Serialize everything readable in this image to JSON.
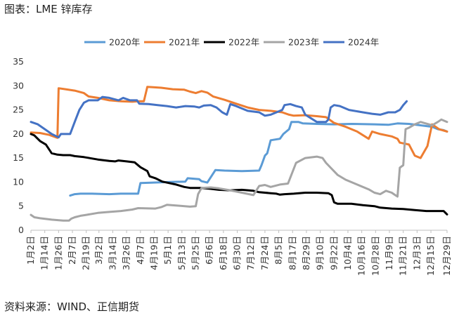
{
  "header": {
    "title": "图表：LME 锌库存"
  },
  "footer": {
    "source": "资料来源：WIND、正信期货"
  },
  "chart_data": {
    "type": "line",
    "title": "图表：LME 锌库存",
    "xlabel": "",
    "ylabel": "",
    "ylim": [
      0,
      35
    ],
    "yticks": [
      0,
      5,
      10,
      15,
      20,
      25,
      30,
      35
    ],
    "grid": false,
    "legend": "top",
    "x_unit": "day_of_year",
    "categories": [
      "1月2日",
      "1月14日",
      "1月26日",
      "2月7日",
      "2月19日",
      "3月2日",
      "3月14日",
      "3月26日",
      "4月7日",
      "4月19日",
      "5月1日",
      "5月13日",
      "5月25日",
      "6月6日",
      "6月18日",
      "6月30日",
      "7月12日",
      "7月24日",
      "8月5日",
      "8月17日",
      "8月29日",
      "9月10日",
      "9月22日",
      "10月4日",
      "10月16日",
      "10月28日",
      "11月9日",
      "11月21日",
      "12月3日",
      "12月15日",
      "12月29日"
    ],
    "category_x": [
      2,
      14,
      26,
      38,
      50,
      61,
      73,
      85,
      97,
      109,
      121,
      133,
      145,
      157,
      169,
      181,
      193,
      205,
      217,
      229,
      241,
      253,
      265,
      277,
      289,
      301,
      313,
      325,
      337,
      349,
      363
    ],
    "series": [
      {
        "name": "2020年",
        "color": "#5b9bd5",
        "points": [
          [
            36,
            7.2
          ],
          [
            40,
            7.5
          ],
          [
            45,
            7.6
          ],
          [
            55,
            7.6
          ],
          [
            70,
            7.5
          ],
          [
            80,
            7.6
          ],
          [
            86,
            7.6
          ],
          [
            95,
            7.6
          ],
          [
            97,
            9.8
          ],
          [
            108,
            9.9
          ],
          [
            120,
            10.0
          ],
          [
            136,
            10.1
          ],
          [
            138,
            10.8
          ],
          [
            148,
            10.6
          ],
          [
            150,
            10.2
          ],
          [
            155,
            9.9
          ],
          [
            162,
            12.5
          ],
          [
            170,
            12.4
          ],
          [
            185,
            12.3
          ],
          [
            200,
            12.4
          ],
          [
            202,
            13.5
          ],
          [
            205,
            15.5
          ],
          [
            207,
            16.0
          ],
          [
            210,
            18.7
          ],
          [
            218,
            19.0
          ],
          [
            221,
            20.0
          ],
          [
            226,
            21.0
          ],
          [
            228,
            22.5
          ],
          [
            234,
            22.5
          ],
          [
            238,
            22.2
          ],
          [
            250,
            22.1
          ],
          [
            265,
            22.0
          ],
          [
            280,
            22.1
          ],
          [
            300,
            22.0
          ],
          [
            312,
            21.9
          ],
          [
            320,
            22.2
          ],
          [
            330,
            22.1
          ],
          [
            340,
            21.8
          ],
          [
            350,
            21.5
          ],
          [
            355,
            21.0
          ],
          [
            360,
            20.8
          ],
          [
            363,
            20.5
          ]
        ]
      },
      {
        "name": "2021年",
        "color": "#ed7d31",
        "points": [
          [
            2,
            20.3
          ],
          [
            10,
            20.2
          ],
          [
            18,
            19.8
          ],
          [
            25,
            19.2
          ],
          [
            26,
            29.5
          ],
          [
            32,
            29.3
          ],
          [
            40,
            29.0
          ],
          [
            48,
            28.5
          ],
          [
            52,
            27.8
          ],
          [
            60,
            27.5
          ],
          [
            70,
            27.0
          ],
          [
            80,
            26.8
          ],
          [
            90,
            26.7
          ],
          [
            95,
            26.8
          ],
          [
            100,
            26.8
          ],
          [
            103,
            29.8
          ],
          [
            108,
            29.7
          ],
          [
            115,
            29.6
          ],
          [
            125,
            29.3
          ],
          [
            135,
            29.2
          ],
          [
            140,
            28.8
          ],
          [
            145,
            28.5
          ],
          [
            150,
            28.9
          ],
          [
            155,
            28.6
          ],
          [
            160,
            27.8
          ],
          [
            170,
            27.1
          ],
          [
            180,
            26.3
          ],
          [
            190,
            25.5
          ],
          [
            200,
            25.0
          ],
          [
            210,
            24.8
          ],
          [
            220,
            24.5
          ],
          [
            226,
            24.0
          ],
          [
            230,
            23.8
          ],
          [
            240,
            23.9
          ],
          [
            250,
            23.7
          ],
          [
            258,
            23.5
          ],
          [
            265,
            22.3
          ],
          [
            275,
            21.5
          ],
          [
            285,
            20.5
          ],
          [
            295,
            19.0
          ],
          [
            298,
            20.5
          ],
          [
            305,
            20.0
          ],
          [
            315,
            19.5
          ],
          [
            320,
            19.0
          ],
          [
            322,
            18.2
          ],
          [
            330,
            17.8
          ],
          [
            335,
            15.5
          ],
          [
            340,
            15.0
          ],
          [
            346,
            17.5
          ],
          [
            350,
            22.0
          ],
          [
            356,
            21.0
          ],
          [
            363,
            20.5
          ]
        ]
      },
      {
        "name": "2022年",
        "color": "#000000",
        "points": [
          [
            2,
            20.0
          ],
          [
            5,
            19.7
          ],
          [
            10,
            18.5
          ],
          [
            15,
            17.8
          ],
          [
            20,
            16.0
          ],
          [
            25,
            15.7
          ],
          [
            30,
            15.6
          ],
          [
            36,
            15.6
          ],
          [
            40,
            15.4
          ],
          [
            48,
            15.2
          ],
          [
            60,
            14.7
          ],
          [
            70,
            14.4
          ],
          [
            75,
            14.3
          ],
          [
            78,
            14.5
          ],
          [
            85,
            14.3
          ],
          [
            92,
            14.1
          ],
          [
            97,
            13.1
          ],
          [
            103,
            12.3
          ],
          [
            105,
            11.2
          ],
          [
            110,
            10.8
          ],
          [
            116,
            10.1
          ],
          [
            122,
            9.8
          ],
          [
            128,
            9.5
          ],
          [
            135,
            9.0
          ],
          [
            140,
            8.8
          ],
          [
            150,
            8.8
          ],
          [
            158,
            8.6
          ],
          [
            165,
            8.4
          ],
          [
            175,
            8.3
          ],
          [
            185,
            8.4
          ],
          [
            195,
            8.2
          ],
          [
            200,
            7.9
          ],
          [
            210,
            7.7
          ],
          [
            215,
            7.6
          ],
          [
            218,
            7.4
          ],
          [
            222,
            7.5
          ],
          [
            230,
            7.6
          ],
          [
            240,
            7.8
          ],
          [
            250,
            7.8
          ],
          [
            260,
            7.7
          ],
          [
            263,
            7.3
          ],
          [
            265,
            5.8
          ],
          [
            268,
            5.5
          ],
          [
            280,
            5.5
          ],
          [
            290,
            5.2
          ],
          [
            300,
            5.0
          ],
          [
            305,
            4.7
          ],
          [
            315,
            4.5
          ],
          [
            325,
            4.4
          ],
          [
            335,
            4.2
          ],
          [
            345,
            4.0
          ],
          [
            355,
            4.0
          ],
          [
            360,
            4.0
          ],
          [
            363,
            3.3
          ]
        ]
      },
      {
        "name": "2023年",
        "color": "#a5a5a5",
        "points": [
          [
            2,
            3.2
          ],
          [
            5,
            2.7
          ],
          [
            10,
            2.5
          ],
          [
            20,
            2.2
          ],
          [
            30,
            2.0
          ],
          [
            35,
            2.0
          ],
          [
            37,
            2.4
          ],
          [
            40,
            2.7
          ],
          [
            45,
            3.0
          ],
          [
            50,
            3.2
          ],
          [
            60,
            3.6
          ],
          [
            70,
            3.8
          ],
          [
            80,
            4.0
          ],
          [
            90,
            4.3
          ],
          [
            95,
            4.6
          ],
          [
            110,
            4.5
          ],
          [
            115,
            4.8
          ],
          [
            120,
            5.3
          ],
          [
            130,
            5.1
          ],
          [
            140,
            4.9
          ],
          [
            145,
            5.0
          ],
          [
            147,
            7.5
          ],
          [
            150,
            8.8
          ],
          [
            158,
            8.9
          ],
          [
            165,
            8.7
          ],
          [
            175,
            8.3
          ],
          [
            185,
            7.8
          ],
          [
            195,
            7.3
          ],
          [
            200,
            9.2
          ],
          [
            205,
            9.4
          ],
          [
            210,
            9.0
          ],
          [
            218,
            9.5
          ],
          [
            225,
            9.7
          ],
          [
            232,
            14.0
          ],
          [
            240,
            15.0
          ],
          [
            250,
            15.3
          ],
          [
            255,
            15.0
          ],
          [
            258,
            14.0
          ],
          [
            262,
            13.0
          ],
          [
            268,
            11.5
          ],
          [
            275,
            10.5
          ],
          [
            285,
            9.5
          ],
          [
            295,
            8.5
          ],
          [
            300,
            7.8
          ],
          [
            305,
            7.5
          ],
          [
            310,
            8.2
          ],
          [
            315,
            7.8
          ],
          [
            318,
            7.3
          ],
          [
            320,
            7.0
          ],
          [
            322,
            13.0
          ],
          [
            325,
            13.5
          ],
          [
            327,
            21.0
          ],
          [
            330,
            21.3
          ],
          [
            335,
            22.0
          ],
          [
            340,
            22.5
          ],
          [
            350,
            21.8
          ],
          [
            355,
            22.5
          ],
          [
            358,
            23.0
          ],
          [
            363,
            22.5
          ]
        ]
      },
      {
        "name": "2024年",
        "color": "#4472c4",
        "points": [
          [
            2,
            22.5
          ],
          [
            8,
            22.0
          ],
          [
            14,
            21.0
          ],
          [
            20,
            20.0
          ],
          [
            26,
            19.3
          ],
          [
            28,
            20.0
          ],
          [
            36,
            20.0
          ],
          [
            40,
            22.5
          ],
          [
            44,
            25.0
          ],
          [
            48,
            26.5
          ],
          [
            52,
            27.0
          ],
          [
            60,
            27.0
          ],
          [
            64,
            27.7
          ],
          [
            70,
            27.5
          ],
          [
            78,
            27.0
          ],
          [
            82,
            27.5
          ],
          [
            88,
            27.0
          ],
          [
            94,
            27.0
          ],
          [
            96,
            26.3
          ],
          [
            104,
            26.2
          ],
          [
            112,
            26.0
          ],
          [
            120,
            25.8
          ],
          [
            128,
            25.5
          ],
          [
            136,
            25.8
          ],
          [
            144,
            25.7
          ],
          [
            148,
            25.5
          ],
          [
            152,
            25.9
          ],
          [
            158,
            26.0
          ],
          [
            163,
            25.5
          ],
          [
            168,
            24.5
          ],
          [
            172,
            24.0
          ],
          [
            175,
            26.2
          ],
          [
            180,
            25.8
          ],
          [
            190,
            24.8
          ],
          [
            200,
            24.5
          ],
          [
            205,
            23.8
          ],
          [
            210,
            24.0
          ],
          [
            215,
            24.5
          ],
          [
            220,
            25.0
          ],
          [
            222,
            26.0
          ],
          [
            227,
            26.2
          ],
          [
            232,
            25.8
          ],
          [
            237,
            25.5
          ],
          [
            240,
            24.0
          ],
          [
            250,
            22.5
          ],
          [
            258,
            22.5
          ],
          [
            260,
            23.0
          ],
          [
            262,
            25.5
          ],
          [
            265,
            26.0
          ],
          [
            270,
            25.8
          ],
          [
            278,
            25.0
          ],
          [
            290,
            24.5
          ],
          [
            298,
            24.2
          ],
          [
            305,
            24.0
          ],
          [
            312,
            24.5
          ],
          [
            318,
            24.5
          ],
          [
            322,
            25.0
          ],
          [
            325,
            26.0
          ],
          [
            328,
            26.8
          ]
        ]
      }
    ]
  }
}
